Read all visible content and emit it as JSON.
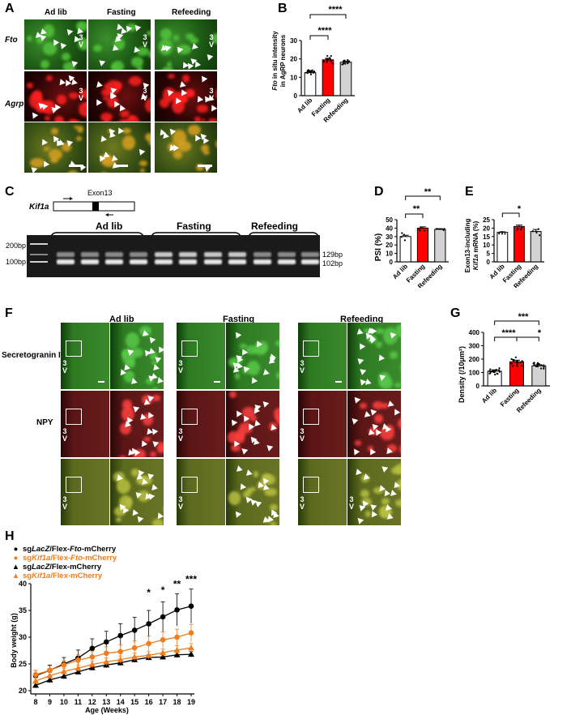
{
  "panels": {
    "A": {
      "letter": "A",
      "conditions": [
        "Ad lib",
        "Fasting",
        "Refeeding"
      ],
      "rows": [
        "Fto",
        "Agrp"
      ],
      "v3_label": "3\nV"
    },
    "B": {
      "letter": "B",
      "ylabel_italic": "Fto",
      "ylabel_rest": " in situ intensity",
      "ylabel_line2": "in AgRP neurons",
      "sig": [
        "****",
        "****"
      ]
    },
    "C": {
      "letter": "C",
      "gene": "Kif1a",
      "exon": "Exon13",
      "groups": [
        "Ad lib",
        "Fasting",
        "Refeeding"
      ],
      "ladder": [
        "200bp",
        "100bp"
      ],
      "bands": [
        "129bp",
        "102bp"
      ]
    },
    "D": {
      "letter": "D",
      "ylabel": "PSI (%)",
      "sig": [
        "**",
        "**"
      ]
    },
    "E": {
      "letter": "E",
      "ylabel_line1": "Exon13-including",
      "ylabel_italic": "Kif1a",
      "ylabel_rest": " mRNA (%)",
      "sig": [
        "*"
      ]
    },
    "F": {
      "letter": "F",
      "conditions": [
        "Ad lib",
        "Fasting",
        "Refeeding"
      ],
      "rows": [
        "Secretogranin II",
        "NPY"
      ]
    },
    "G": {
      "letter": "G",
      "ylabel": "Density (/10μm²)",
      "sig": [
        "***",
        "****",
        "*"
      ]
    },
    "H": {
      "letter": "H",
      "xlabel": "Age (Weeks)",
      "ylabel": "Body weight (g)",
      "sig_labels": [
        "*",
        "*",
        "**",
        "***"
      ],
      "legend": [
        {
          "pre": "sg",
          "it1": "LacZ",
          "mid": "/Flex-",
          "it2": "Fto",
          "post": "-mCherry",
          "color": "#000000",
          "marker": "circle"
        },
        {
          "pre": "sg",
          "it1": "Kif1a",
          "mid": "/Flex-",
          "it2": "Fto",
          "post": "-mCherry",
          "color": "#f07d1e",
          "marker": "circle"
        },
        {
          "pre": "sg",
          "it1": "LacZ",
          "mid": "/Flex-mCherry",
          "it2": "",
          "post": "",
          "color": "#000000",
          "marker": "triangle"
        },
        {
          "pre": "sg",
          "it1": "Kif1a",
          "mid": "/Flex-mCherry",
          "it2": "",
          "post": "",
          "color": "#f07d1e",
          "marker": "triangle"
        }
      ]
    }
  },
  "chart_data": [
    {
      "type": "bar",
      "panel": "B",
      "categories": [
        "Ad lib",
        "Fasting",
        "Refeeding"
      ],
      "values": [
        12.5,
        19.5,
        18.2
      ],
      "errors": [
        0.5,
        0.8,
        0.4
      ],
      "colors": [
        "#ffffff",
        "#ff0000",
        "#d3d3d3"
      ],
      "ylim": [
        0,
        30
      ],
      "yticks": [
        0,
        10,
        20,
        30
      ]
    },
    {
      "type": "bar",
      "panel": "D",
      "categories": [
        "Ad lib",
        "Fasting",
        "Refeeding"
      ],
      "values": [
        30,
        40,
        38.5
      ],
      "errors": [
        1.5,
        1.5,
        0.8
      ],
      "colors": [
        "#ffffff",
        "#ff0000",
        "#d3d3d3"
      ],
      "ylim": [
        0,
        50
      ],
      "yticks": [
        0,
        10,
        20,
        30,
        40,
        50
      ]
    },
    {
      "type": "bar",
      "panel": "E",
      "categories": [
        "Ad lib",
        "Fasting",
        "Refeeding"
      ],
      "values": [
        17.5,
        21,
        18
      ],
      "errors": [
        0.3,
        0.8,
        1.2
      ],
      "colors": [
        "#ffffff",
        "#ff0000",
        "#d3d3d3"
      ],
      "ylim": [
        0,
        25
      ],
      "yticks": [
        0,
        5,
        10,
        15,
        20,
        25
      ]
    },
    {
      "type": "bar",
      "panel": "G",
      "categories": [
        "Ad lib",
        "Fasting",
        "Refeeding"
      ],
      "values": [
        110,
        180,
        150
      ],
      "errors": [
        10,
        12,
        8
      ],
      "colors": [
        "#ffffff",
        "#ff0000",
        "#d3d3d3"
      ],
      "ylim": [
        0,
        400
      ],
      "yticks": [
        0,
        100,
        200,
        300,
        400
      ]
    },
    {
      "type": "line",
      "panel": "H",
      "x": [
        8,
        9,
        10,
        11,
        12,
        13,
        14,
        15,
        16,
        17,
        18,
        19
      ],
      "xlim": [
        8,
        19
      ],
      "ylim": [
        20,
        40
      ],
      "yticks": [
        20,
        25,
        30,
        35,
        40
      ],
      "series": [
        {
          "values": [
            22.8,
            23.8,
            25.0,
            26.1,
            27.9,
            29.1,
            30.3,
            31.3,
            32.5,
            33.8,
            35.1,
            35.8
          ],
          "errors": [
            1.0,
            1.0,
            1.2,
            1.5,
            1.8,
            2.0,
            2.2,
            2.4,
            2.5,
            2.8,
            3.0,
            3.2
          ],
          "color": "#000000",
          "marker": "circle"
        },
        {
          "values": [
            23.0,
            23.8,
            24.8,
            25.7,
            26.3,
            27.0,
            27.3,
            28.0,
            28.8,
            29.5,
            30.0,
            30.8
          ],
          "errors": [
            0.8,
            0.8,
            0.9,
            1.0,
            1.1,
            1.2,
            1.3,
            1.3,
            1.4,
            1.5,
            1.5,
            1.6
          ],
          "color": "#f07d1e",
          "marker": "circle"
        },
        {
          "values": [
            21.0,
            22.0,
            22.7,
            23.5,
            24.3,
            24.8,
            25.2,
            25.8,
            26.2,
            26.3,
            26.7,
            26.8
          ],
          "errors": [
            0.5,
            0.5,
            0.5,
            0.5,
            0.5,
            0.5,
            0.5,
            0.5,
            0.5,
            0.5,
            0.5,
            0.5
          ],
          "color": "#000000",
          "marker": "triangle"
        },
        {
          "values": [
            21.8,
            22.8,
            23.6,
            24.2,
            24.9,
            25.4,
            25.8,
            26.3,
            26.6,
            27.1,
            27.6,
            28.0
          ],
          "errors": [
            0.6,
            0.6,
            0.6,
            0.6,
            0.6,
            0.7,
            0.7,
            0.7,
            0.7,
            0.7,
            0.8,
            0.8
          ],
          "color": "#f07d1e",
          "marker": "triangle"
        }
      ]
    }
  ]
}
